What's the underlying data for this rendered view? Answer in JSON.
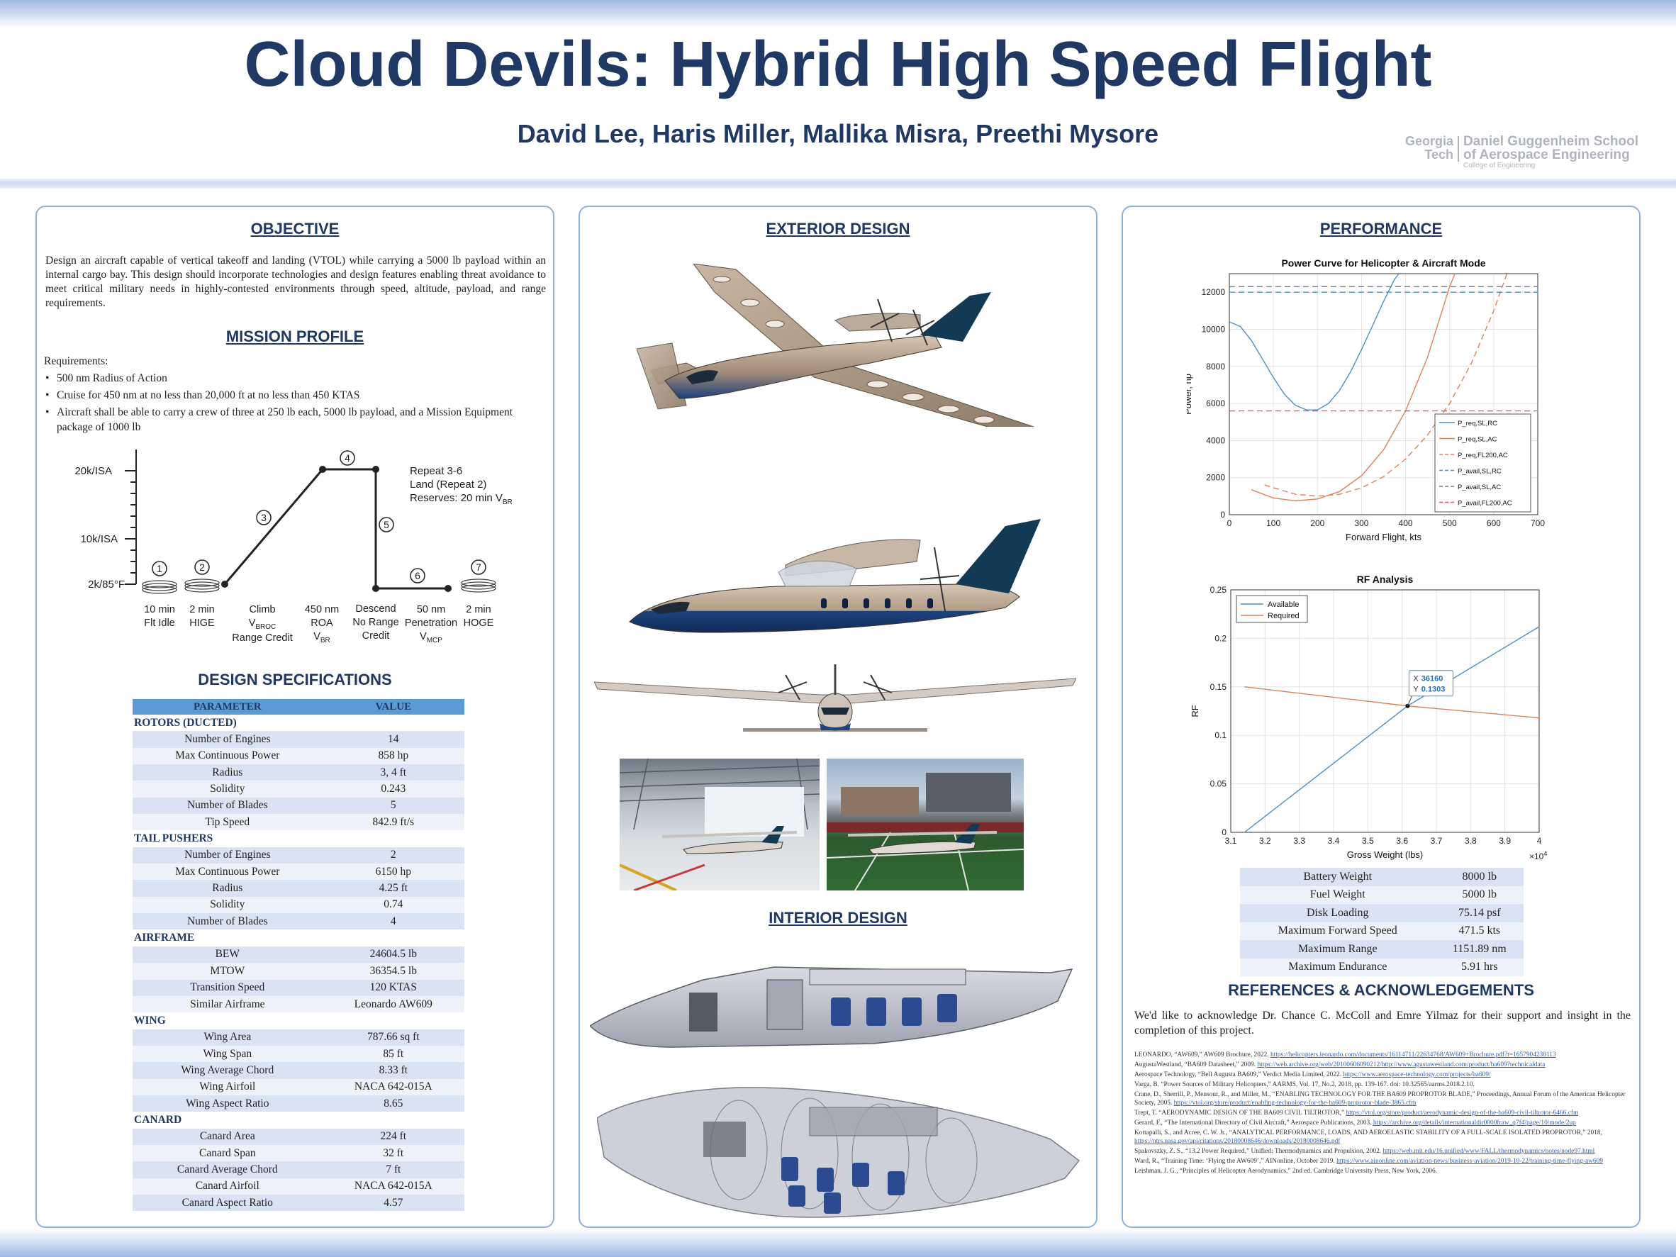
{
  "header": {
    "title": "Cloud Devils: Hybrid High Speed Flight",
    "authors": "David Lee, Haris Miller, Mallika Misra, Preethi Mysore",
    "logo_gt": "Georgia Tech",
    "logo_school_line1": "Daniel Guggenheim School",
    "logo_school_line2": "of Aerospace Engineering",
    "logo_college": "College of Engineering"
  },
  "objective": {
    "title": "OBJECTIVE",
    "text": "Design an aircraft capable of vertical takeoff and landing (VTOL) while carrying a 5000 lb payload within an internal cargo bay. This design should incorporate technologies and design features enabling threat avoidance to meet critical military needs in highly-contested environments through speed, altitude, payload, and range requirements."
  },
  "mission": {
    "title": "MISSION PROFILE",
    "requirements_label": "Requirements:",
    "bullets": [
      "500 nm Radius of Action",
      "Cruise for 450 nm at no less than 20,000 ft at no less than 450 KTAS",
      "Aircraft shall be able to carry a crew of three at 250 lb each, 5000 lb payload, and a Mission Equipment package of 1000 lb"
    ],
    "y_labels": [
      "20k/ISA",
      "10k/ISA",
      "2k/85°F"
    ],
    "notes": [
      "Repeat 3-6",
      "Land (Repeat 2)",
      "Reserves: 20 min V",
      "BR"
    ],
    "segments": [
      {
        "num": "1",
        "l1": "10 min",
        "l2": "Flt Idle",
        "l3": "",
        "l3sub": ""
      },
      {
        "num": "2",
        "l1": "2 min",
        "l2": "HIGE",
        "l3": "",
        "l3sub": ""
      },
      {
        "num": "3",
        "l1": "Climb",
        "l2": "V",
        "l2sub": "BROC",
        "l3": "Range Credit"
      },
      {
        "num": "4",
        "l1": "450 nm",
        "l2": "ROA",
        "l3": "V",
        "l3sub": "BR"
      },
      {
        "num": "5",
        "l1": "Descend",
        "l2": "No Range",
        "l3": "Credit",
        "l3sub": ""
      },
      {
        "num": "6",
        "l1": "50 nm",
        "l2": "Penetration",
        "l3": "V",
        "l3sub": "MCP"
      },
      {
        "num": "7",
        "l1": "2 min",
        "l2": "HOGE",
        "l3": "",
        "l3sub": ""
      }
    ]
  },
  "specs": {
    "title": "DESIGN SPECIFICATIONS",
    "col1": "PARAMETER",
    "col2": "VALUE",
    "groups": [
      {
        "name": "ROTORS (DUCTED)",
        "rows": [
          [
            "Number of Engines",
            "14"
          ],
          [
            "Max Continuous Power",
            "858 hp"
          ],
          [
            "Radius",
            "3, 4 ft"
          ],
          [
            "Solidity",
            "0.243"
          ],
          [
            "Number of Blades",
            "5"
          ],
          [
            "Tip Speed",
            "842.9 ft/s"
          ]
        ]
      },
      {
        "name": "TAIL PUSHERS",
        "rows": [
          [
            "Number of Engines",
            "2"
          ],
          [
            "Max Continuous Power",
            "6150 hp"
          ],
          [
            "Radius",
            "4.25 ft"
          ],
          [
            "Solidity",
            "0.74"
          ],
          [
            "Number of Blades",
            "4"
          ]
        ]
      },
      {
        "name": "AIRFRAME",
        "rows": [
          [
            "BEW",
            "24604.5 lb"
          ],
          [
            "MTOW",
            "36354.5 lb"
          ],
          [
            "Transition Speed",
            "120 KTAS"
          ],
          [
            "Similar Airframe",
            "Leonardo AW609"
          ]
        ]
      },
      {
        "name": "WING",
        "rows": [
          [
            "Wing Area",
            "787.66 sq ft"
          ],
          [
            "Wing Span",
            "85 ft"
          ],
          [
            "Wing Average Chord",
            "8.33 ft"
          ],
          [
            "Wing Airfoil",
            "NACA 642-015A"
          ],
          [
            "Wing Aspect Ratio",
            "8.65"
          ]
        ]
      },
      {
        "name": "CANARD",
        "rows": [
          [
            "Canard Area",
            "224 ft"
          ],
          [
            "Canard Span",
            "32 ft"
          ],
          [
            "Canard Average Chord",
            "7 ft"
          ],
          [
            "Canard Airfoil",
            "NACA 642-015A"
          ],
          [
            "Canard Aspect Ratio",
            "4.57"
          ]
        ]
      }
    ]
  },
  "exterior": {
    "title": "EXTERIOR DESIGN"
  },
  "interior": {
    "title": "INTERIOR DESIGN"
  },
  "performance": {
    "title": "PERFORMANCE",
    "rows": [
      [
        "Battery Weight",
        "8000 lb"
      ],
      [
        "Fuel Weight",
        "5000 lb"
      ],
      [
        "Disk Loading",
        "75.14 psf"
      ],
      [
        "Maximum Forward Speed",
        "471.5 kts"
      ],
      [
        "Maximum Range",
        "1151.89 nm"
      ],
      [
        "Maximum Endurance",
        "5.91 hrs"
      ]
    ]
  },
  "references": {
    "title": "REFERENCES & ACKNOWLEDGEMENTS",
    "ack": "We'd like to acknowledge Dr. Chance C. McColl and Emre Yilmaz for their support and insight in the completion of this project.",
    "items": [
      {
        "text": "LEONARDO, “AW609,” AW609 Brochure, 2022.",
        "link": "https://helicopters.leonardo.com/documents/16114711/22634768/AW609+Brochure.pdf?t=1657904238113"
      },
      {
        "text": "AugustaWestland, “BA609 Datasheet,” 2009.",
        "link": "https://web.archive.org/web/20100606090212/http://www.agustawestland.com/product/ba609?technicaldata"
      },
      {
        "text": "Aerospace Technology, “Bell Augusta BA609,” Verdict Media Limited, 2022.",
        "link": "https://www.aerospace-technology.com/projects/ba609/"
      },
      {
        "text": "Varga, B. “Power Sources of Military Helicopters,” AARMS, Vol. 17, No.2, 2018, pp. 139-167. doi: 10.32565/aarms.2018.2.10.",
        "link": ""
      },
      {
        "text": "Crane, D., Sherrill, P., Mensour, R., and Miller, M., “ENABLING TECHNOLOGY FOR THE BA609 PROPROTOR BLADE,” Proceedings, Annual Forum of the American Helicopter Society, 2005.",
        "link": "https://vtol.org/store/product/enabling-technology-for-the-ba609-proprotor-blade-3865.cfm"
      },
      {
        "text": "Trept, T. “AERODYNAMIC DESIGN OF THE BA609 CIVIL TILTROTOR,”",
        "link": "https://vtol.org/store/product/aerodynamic-design-of-the-ba609-civil-tiltrotor-6466.cfm"
      },
      {
        "text": "Gerard, F., “The International Directory of Civil Aircraft,” Aerospace Publications, 2003.",
        "link": "https://archive.org/details/internationaldir0000fraw_q7f4/page/10/mode/2up"
      },
      {
        "text": "Kottapalli, S., and Acree, C. W. Jr., “ANALYTICAL PERFORMANCE, LOADS, AND AEROELASTIC STABILITY OF A FULL-SCALE ISOLATED PROPROTOR,” 2018,",
        "link": "https://ntrs.nasa.gov/api/citations/20180008646/downloads/20180008646.pdf"
      },
      {
        "text": "Spakovszky, Z. S., “13.2 Power Required,” Unified: Thermodynamics and Propulsion, 2002.",
        "link": "https://web.mit.edu/16.unified/www/FALL/thermodynamics/notes/node97.html"
      },
      {
        "text": "Ward, R., “Training Time: ‘Flying the AW609’,” AINonline, October 2019.",
        "link": "https://www.ainonline.com/aviation-news/business-aviation/2019-10-22/training-time-flying-aw609"
      },
      {
        "text": "Leishman, J. G., “Principles of Helicopter Aerodynamics,” 2nd ed. Cambridge University Press, New York, 2006.",
        "link": ""
      }
    ]
  },
  "chart_data": [
    {
      "type": "line",
      "title": "Power Curve for Helicopter & Aircraft Mode",
      "xlabel": "Forward Flight, kts",
      "ylabel": "Power, hp",
      "xlim": [
        0,
        700
      ],
      "ylim": [
        0,
        13000
      ],
      "xticks": [
        0,
        100,
        200,
        300,
        400,
        500,
        600,
        700
      ],
      "yticks": [
        0,
        2000,
        4000,
        6000,
        8000,
        10000,
        12000
      ],
      "grid": true,
      "legend": "lower-right",
      "series": [
        {
          "name": "P_req,SL,RC",
          "color": "#4a90c4",
          "dash": "",
          "x": [
            0,
            25,
            50,
            75,
            100,
            125,
            150,
            175,
            200,
            225,
            250,
            275,
            300,
            325,
            350,
            375,
            385
          ],
          "y": [
            10400,
            10150,
            9400,
            8400,
            7400,
            6500,
            5900,
            5650,
            5650,
            6000,
            6700,
            7700,
            8900,
            10200,
            11500,
            12700,
            13000
          ]
        },
        {
          "name": "P_req,SL,AC",
          "color": "#d9825b",
          "dash": "",
          "x": [
            50,
            100,
            150,
            200,
            250,
            300,
            350,
            400,
            450,
            500,
            512
          ],
          "y": [
            1350,
            900,
            750,
            850,
            1250,
            2100,
            3500,
            5600,
            8500,
            12300,
            13000
          ]
        },
        {
          "name": "P_req,FL200,AC",
          "color": "#d9825b",
          "dash": "8,5",
          "x": [
            80,
            150,
            200,
            250,
            300,
            350,
            400,
            450,
            500,
            550,
            600,
            630
          ],
          "y": [
            1600,
            1100,
            1000,
            1100,
            1450,
            2050,
            3000,
            4300,
            6000,
            8200,
            11000,
            13000
          ]
        },
        {
          "name": "P_avail,SL,RC",
          "color": "#4a90c4",
          "dash": "8,5",
          "x": [
            0,
            700
          ],
          "y": [
            12000,
            12000
          ]
        },
        {
          "name": "P_avail,SL,AC",
          "color": "#7a7a9a",
          "dash": "8,5",
          "x": [
            0,
            700
          ],
          "y": [
            12300,
            12300
          ]
        },
        {
          "name": "P_avail,FL200,AC",
          "color": "#e05a6a",
          "dash": "8,5",
          "x": [
            0,
            700
          ],
          "y": [
            5600,
            5600
          ]
        }
      ]
    },
    {
      "type": "line",
      "title": "RF Analysis",
      "xlabel": "Gross Weight (lbs)",
      "ylabel": "RF",
      "xlim": [
        3.1,
        4.0
      ],
      "ylim": [
        0,
        0.25
      ],
      "xticks": [
        3.1,
        3.2,
        3.3,
        3.4,
        3.5,
        3.6,
        3.7,
        3.8,
        3.9,
        4.0
      ],
      "yticks": [
        0,
        0.05,
        0.1,
        0.15,
        0.2,
        0.25
      ],
      "x_multiplier": "×10",
      "x_multiplier_exp": "4",
      "grid": true,
      "legend": "top-left",
      "series": [
        {
          "name": "Available",
          "color": "#4a90c4",
          "x": [
            3.14,
            3.616,
            4.0
          ],
          "y": [
            0.0,
            0.1303,
            0.212
          ]
        },
        {
          "name": "Required",
          "color": "#d9825b",
          "x": [
            3.14,
            3.616,
            4.0
          ],
          "y": [
            0.15,
            0.1303,
            0.118
          ]
        }
      ],
      "datatip": {
        "x_label": "X",
        "x_value": "36160",
        "y_label": "Y",
        "y_value": "0.1303",
        "x": 3.616,
        "y": 0.1303
      }
    }
  ]
}
